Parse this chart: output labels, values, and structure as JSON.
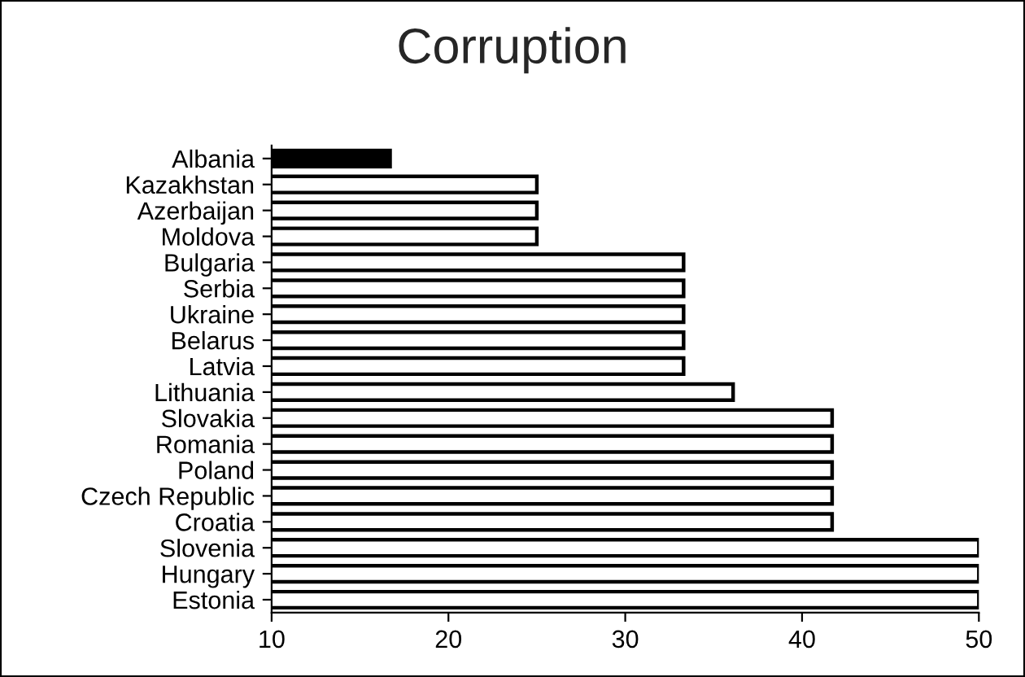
{
  "chart_data": {
    "type": "bar",
    "orientation": "horizontal",
    "title": "Corruption",
    "categories": [
      "Albania",
      "Kazakhstan",
      "Azerbaijan",
      "Moldova",
      "Bulgaria",
      "Serbia",
      "Ukraine",
      "Belarus",
      "Latvia",
      "Lithuania",
      "Slovakia",
      "Romania",
      "Poland",
      "Czech Republic",
      "Croatia",
      "Slovenia",
      "Hungary",
      "Estonia"
    ],
    "values": [
      16.7,
      25,
      25,
      25,
      33.3,
      33.3,
      33.3,
      33.3,
      33.3,
      36.1,
      41.7,
      41.7,
      41.7,
      41.7,
      41.7,
      50,
      50,
      50
    ],
    "colors": [
      "#000000",
      "#ffffff",
      "#ffffff",
      "#ffffff",
      "#ffffff",
      "#ffffff",
      "#ffffff",
      "#ffffff",
      "#ffffff",
      "#ffffff",
      "#ffffff",
      "#ffffff",
      "#ffffff",
      "#ffffff",
      "#ffffff",
      "#ffffff",
      "#ffffff",
      "#ffffff"
    ],
    "xlim": [
      10,
      50
    ],
    "xticks": [
      10,
      20,
      30,
      40,
      50
    ],
    "grid": false
  }
}
